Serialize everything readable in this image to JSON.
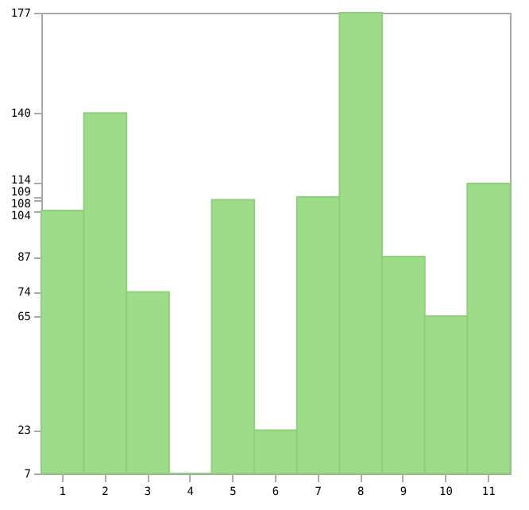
{
  "chart_data": {
    "type": "bar",
    "categories": [
      "1",
      "2",
      "3",
      "4",
      "5",
      "6",
      "7",
      "8",
      "9",
      "10",
      "11"
    ],
    "values": [
      104,
      140,
      74,
      7,
      108,
      23,
      109,
      177,
      87,
      65,
      114
    ],
    "color": "#9ddd8a",
    "ylim": [
      7,
      177
    ],
    "yticks": [
      7,
      23,
      65,
      74,
      87,
      104,
      108,
      109,
      114,
      140,
      177
    ],
    "grid": false
  }
}
